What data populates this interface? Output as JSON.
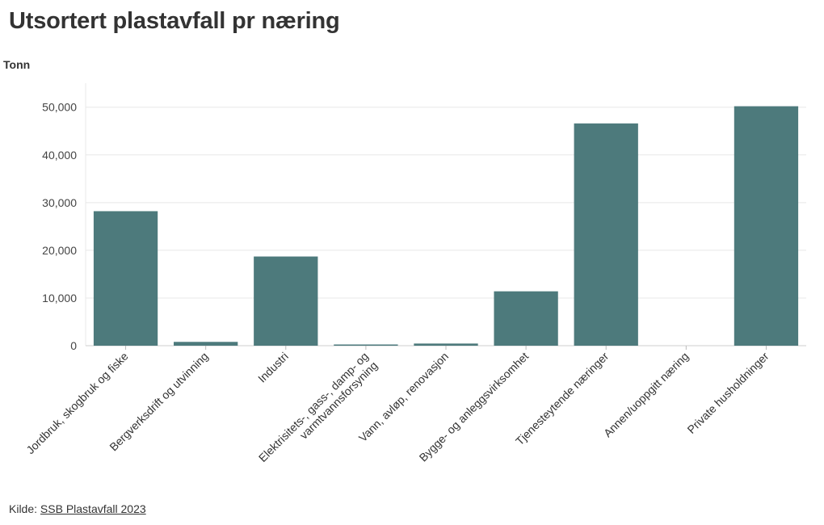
{
  "title": "Utsortert plastavfall pr næring",
  "source": {
    "prefix": "Kilde:",
    "link_text": "SSB Plastavfall 2023"
  },
  "colors": {
    "bar": "#4d7a7c",
    "grid": "#e8e8e8",
    "text": "#333333"
  },
  "chart_data": {
    "type": "bar",
    "title": "Utsortert plastavfall pr næring",
    "ylabel": "Tonn",
    "xlabel": "",
    "ylim": [
      0,
      53000
    ],
    "yticks": [
      0,
      10000,
      20000,
      30000,
      40000,
      50000
    ],
    "ytick_labels": [
      "0",
      "10,000",
      "20,000",
      "30,000",
      "40,000",
      "50,000"
    ],
    "grid": true,
    "categories": [
      [
        "Jordbruk, skogbruk og fiske"
      ],
      [
        "Bergverksdrift og utvinning"
      ],
      [
        "Industri"
      ],
      [
        "Elektrisitets-, gass-, damp- og",
        "varmtvannsforsyning"
      ],
      [
        "Vann, avløp, renovasjon"
      ],
      [
        "Bygge- og anleggsvirksomhet"
      ],
      [
        "Tjenesteytende næringer"
      ],
      [
        "Annen/uoppgitt næring"
      ],
      [
        "Private husholdninger"
      ]
    ],
    "values": [
      28200,
      800,
      18700,
      150,
      450,
      11400,
      46600,
      0,
      50200
    ]
  }
}
